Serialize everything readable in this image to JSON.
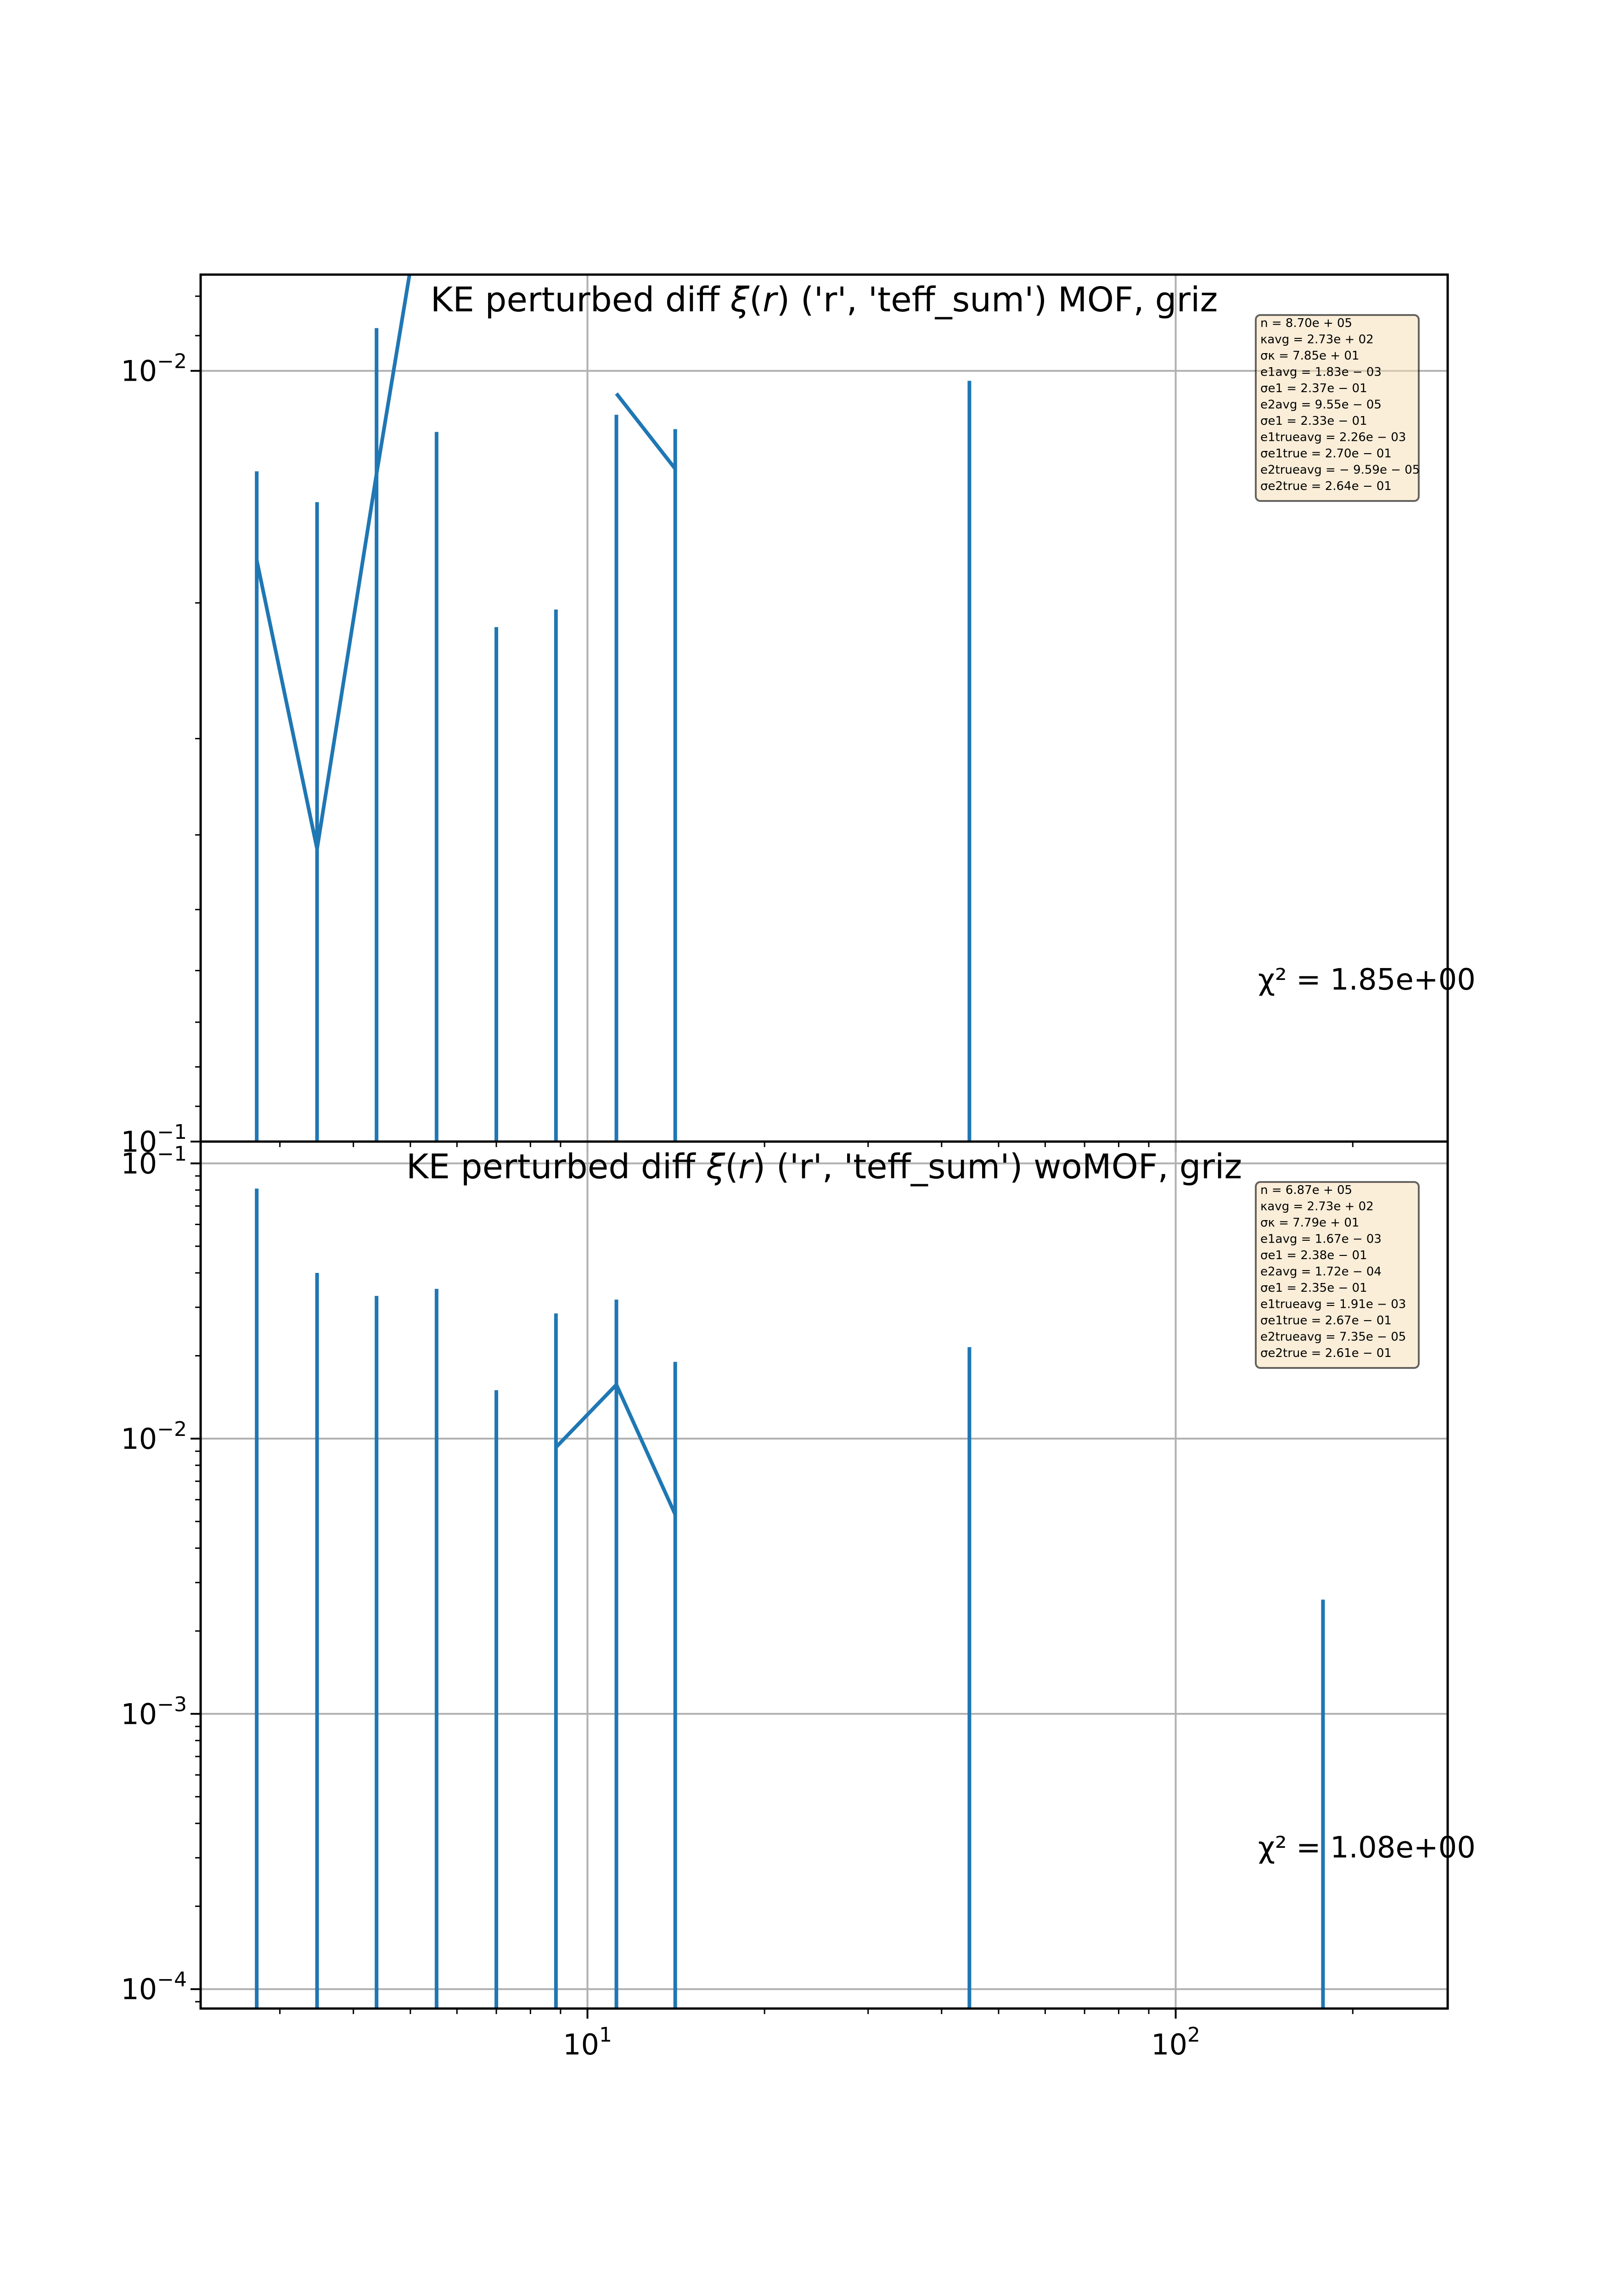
{
  "colors": {
    "series": "#1f77b4",
    "grid": "#b0b0b0",
    "box_fill": "#f5deb3",
    "box_edge": "#000000"
  },
  "chart_data": [
    {
      "type": "line",
      "subtype": "errorbar",
      "title_parts": [
        "KE perturbed diff ",
        "ξ",
        "(",
        "r",
        ") ('r', 'teff_sum') MOF,  griz"
      ],
      "xscale": "log",
      "yscale": "log",
      "xlim": [
        2.2,
        290
      ],
      "ylim": [
        0.1,
        0.0075
      ],
      "grid": true,
      "x_ticks": [
        {
          "base": "10",
          "exp": "1",
          "value": 10
        },
        {
          "base": "10",
          "exp": "2",
          "value": 100
        }
      ],
      "y_ticks": [
        {
          "base": "10",
          "exp": "−2",
          "value": 0.01
        },
        {
          "base": "10",
          "exp": "−1",
          "value": 0.1
        }
      ],
      "x": [
        2.74,
        3.47,
        4.38,
        5.54,
        7.0,
        8.84,
        11.2,
        14.1,
        44.6
      ],
      "y": [
        0.0176,
        0.0417,
        0.0136,
        0.0046,
        null,
        null,
        0.0107,
        0.0134,
        null
      ],
      "yerr_upper": [
        0.0135,
        0.0148,
        0.0088,
        0.012,
        0.0215,
        0.0204,
        0.0114,
        0.0119,
        0.0103
      ],
      "yerr_lower": [
        0.1,
        0.1,
        0.1,
        0.1,
        0.1,
        0.1,
        0.1,
        0.1,
        0.1
      ],
      "chi2_label": "χ² = 1.85e+00",
      "stats_lines": [
        "n = 8.70e + 05",
        "κavg = 2.73e + 02",
        "σκ = 7.85e + 01",
        "e1avg = 1.83e − 03",
        "σe1 = 2.37e − 01",
        "e2avg = 9.55e − 05",
        "σe1 = 2.33e − 01",
        "e1trueavg = 2.26e − 03",
        "σe1true = 2.70e − 01",
        "e2trueavg = − 9.59e − 05",
        "σe2true = 2.64e − 01"
      ]
    },
    {
      "type": "line",
      "subtype": "errorbar",
      "title_parts": [
        "KE perturbed diff ",
        "ξ",
        "(",
        "r",
        ") ('r', 'teff_sum') woMOF,  griz"
      ],
      "xscale": "log",
      "yscale": "log",
      "xlim": [
        2.2,
        290
      ],
      "ylim": [
        8.5e-05,
        0.12
      ],
      "grid": true,
      "x_ticks": [
        {
          "base": "10",
          "exp": "1",
          "value": 10
        },
        {
          "base": "10",
          "exp": "2",
          "value": 100
        }
      ],
      "y_ticks": [
        {
          "base": "10",
          "exp": "−4",
          "value": 0.0001
        },
        {
          "base": "10",
          "exp": "−3",
          "value": 0.001
        },
        {
          "base": "10",
          "exp": "−2",
          "value": 0.01
        },
        {
          "base": "10",
          "exp": "−1",
          "value": 0.1
        }
      ],
      "x": [
        2.74,
        3.47,
        4.38,
        5.54,
        7.0,
        8.84,
        11.2,
        14.1,
        44.6,
        178
      ],
      "y": [
        null,
        null,
        null,
        null,
        null,
        0.0093,
        0.0157,
        0.0053,
        null,
        null
      ],
      "yerr_upper": [
        0.081,
        0.04,
        0.033,
        0.035,
        0.015,
        0.0285,
        0.032,
        0.019,
        0.0215,
        0.0026
      ],
      "yerr_lower": [
        8.5e-05,
        8.5e-05,
        8.5e-05,
        8.5e-05,
        8.5e-05,
        8.5e-05,
        8.5e-05,
        8.5e-05,
        8.5e-05,
        8.5e-05
      ],
      "chi2_label": "χ² = 1.08e+00",
      "stats_lines": [
        "n = 6.87e + 05",
        "κavg = 2.73e + 02",
        "σκ = 7.79e + 01",
        "e1avg = 1.67e − 03",
        "σe1 = 2.38e − 01",
        "e2avg = 1.72e − 04",
        "σe1 = 2.35e − 01",
        "e1trueavg = 1.91e − 03",
        "σe1true = 2.67e − 01",
        "e2trueavg = 7.35e − 05",
        "σe2true = 2.61e − 01"
      ]
    }
  ]
}
